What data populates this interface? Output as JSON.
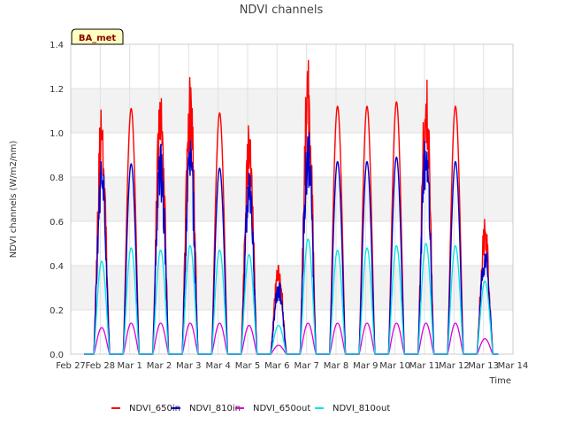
{
  "chart_data": {
    "type": "line",
    "title": "NDVI channels",
    "xlabel": "Time",
    "ylabel": "NDVI channels (W/m2/nm)",
    "badge": "BA_met",
    "ylim": [
      0,
      1.4
    ],
    "yticks": [
      "0.0",
      "0.2",
      "0.4",
      "0.6",
      "0.8",
      "1.0",
      "1.2",
      "1.4"
    ],
    "xticks": [
      "Feb 27",
      "Feb 28",
      "Mar 1",
      "Mar 2",
      "Mar 3",
      "Mar 4",
      "Mar 5",
      "Mar 6",
      "Mar 7",
      "Mar 8",
      "Mar 9",
      "Mar 10",
      "Mar 11",
      "Mar 12",
      "Mar 13",
      "Mar 14"
    ],
    "x_domain_days": [
      "Feb 27",
      "Mar 14"
    ],
    "grid": true,
    "legend_position": "bottom",
    "day_labels": [
      "Feb 28",
      "Mar 1",
      "Mar 2",
      "Mar 3",
      "Mar 4",
      "Mar 5",
      "Mar 6",
      "Mar 7",
      "Mar 8",
      "Mar 9",
      "Mar 10",
      "Mar 11",
      "Mar 12",
      "Mar 13"
    ],
    "series": [
      {
        "name": "NDVI_650in",
        "color": "#ff0000",
        "daily_peak": [
          0.97,
          1.11,
          1.07,
          1.07,
          1.09,
          0.89,
          0.35,
          1.15,
          1.12,
          1.12,
          1.14,
          1.11,
          1.12,
          0.52
        ]
      },
      {
        "name": "NDVI_810in",
        "color": "#0000cc",
        "daily_peak": [
          0.77,
          0.86,
          0.83,
          0.86,
          0.84,
          0.71,
          0.29,
          0.9,
          0.87,
          0.87,
          0.89,
          0.89,
          0.87,
          0.43
        ]
      },
      {
        "name": "NDVI_650out",
        "color": "#dd00dd",
        "daily_peak": [
          0.12,
          0.14,
          0.14,
          0.14,
          0.14,
          0.13,
          0.04,
          0.14,
          0.14,
          0.14,
          0.14,
          0.14,
          0.14,
          0.07
        ]
      },
      {
        "name": "NDVI_810out",
        "color": "#00e5e5",
        "daily_peak": [
          0.42,
          0.48,
          0.47,
          0.49,
          0.47,
          0.45,
          0.13,
          0.52,
          0.47,
          0.48,
          0.49,
          0.5,
          0.49,
          0.33
        ]
      }
    ]
  }
}
